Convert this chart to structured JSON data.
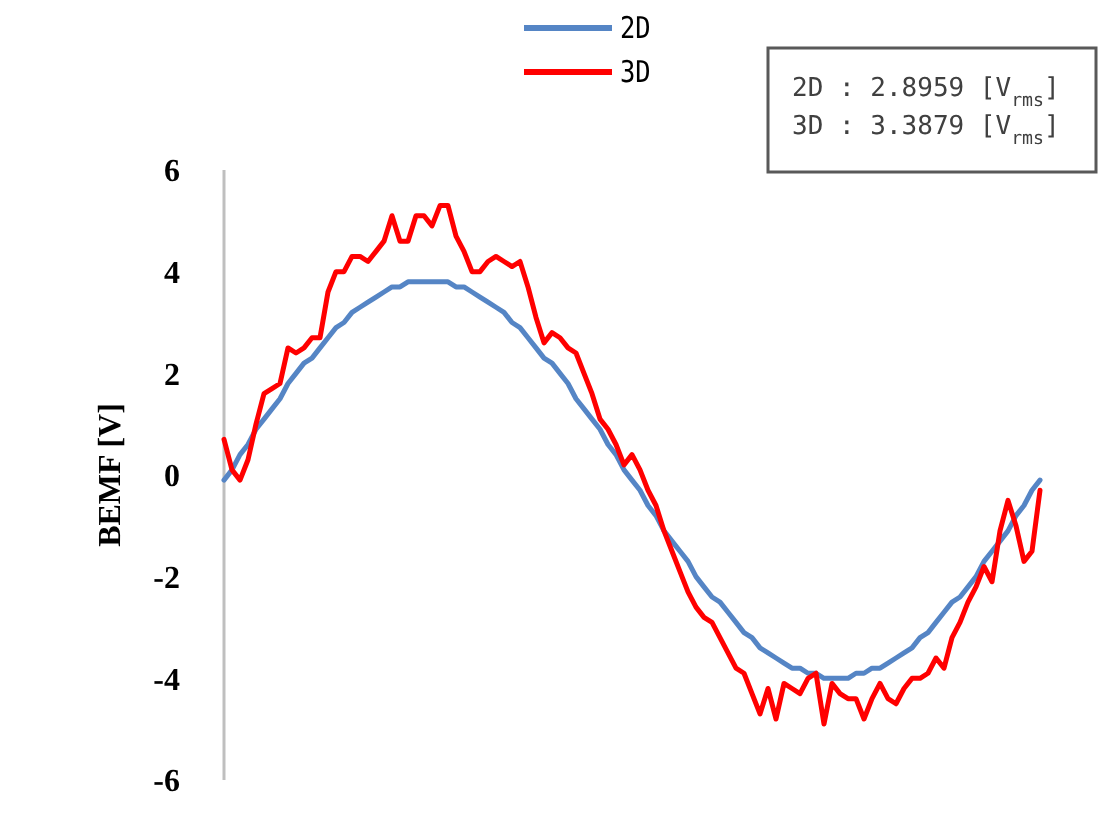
{
  "chart_data": {
    "type": "line",
    "ylabel": "BEMF  [V]",
    "categories": [
      null,
      null,
      null,
      null,
      null,
      null,
      null,
      null,
      null,
      null,
      null,
      null,
      null,
      null,
      null,
      null,
      null,
      null,
      null,
      null,
      null,
      null,
      null,
      null,
      null,
      null,
      null,
      null,
      null,
      null,
      null,
      null,
      null,
      null,
      null,
      null,
      null,
      null,
      null,
      null,
      null,
      null,
      null,
      null,
      null,
      null,
      null,
      null,
      null,
      null,
      null,
      null,
      null,
      null,
      null,
      null,
      null,
      null,
      null,
      null,
      null,
      null,
      null,
      null,
      null,
      null,
      null,
      null,
      null,
      null,
      null,
      null,
      null,
      null,
      null,
      null,
      null,
      null,
      null,
      null,
      null,
      null,
      null,
      null,
      null,
      null,
      null,
      null,
      null,
      null,
      null,
      null,
      null,
      null,
      null,
      null,
      null,
      null,
      null,
      null,
      null,
      null,
      null
    ],
    "series": [
      {
        "name": "2D",
        "color": "#5585c5",
        "values": [
          -0.1,
          0.1,
          0.4,
          0.6,
          0.9,
          1.1,
          1.3,
          1.5,
          1.8,
          2.0,
          2.2,
          2.3,
          2.5,
          2.7,
          2.9,
          3.0,
          3.2,
          3.3,
          3.4,
          3.5,
          3.6,
          3.7,
          3.7,
          3.8,
          3.8,
          3.8,
          3.8,
          3.8,
          3.8,
          3.7,
          3.7,
          3.6,
          3.5,
          3.4,
          3.3,
          3.2,
          3.0,
          2.9,
          2.7,
          2.5,
          2.3,
          2.2,
          2.0,
          1.8,
          1.5,
          1.3,
          1.1,
          0.9,
          0.6,
          0.4,
          0.1,
          -0.1,
          -0.3,
          -0.6,
          -0.8,
          -1.1,
          -1.3,
          -1.5,
          -1.7,
          -2.0,
          -2.2,
          -2.4,
          -2.5,
          -2.7,
          -2.9,
          -3.1,
          -3.2,
          -3.4,
          -3.5,
          -3.6,
          -3.7,
          -3.8,
          -3.8,
          -3.9,
          -3.9,
          -4.0,
          -4.0,
          -4.0,
          -4.0,
          -3.9,
          -3.9,
          -3.8,
          -3.8,
          -3.7,
          -3.6,
          -3.5,
          -3.4,
          -3.2,
          -3.1,
          -2.9,
          -2.7,
          -2.5,
          -2.4,
          -2.2,
          -2.0,
          -1.7,
          -1.5,
          -1.3,
          -1.1,
          -0.8,
          -0.6,
          -0.3,
          -0.1
        ]
      },
      {
        "name": "3D",
        "color": "#ff0000",
        "values": [
          0.7,
          0.1,
          -0.1,
          0.3,
          1.0,
          1.6,
          1.7,
          1.8,
          2.5,
          2.4,
          2.5,
          2.7,
          2.7,
          3.6,
          4.0,
          4.0,
          4.3,
          4.3,
          4.2,
          4.4,
          4.6,
          5.1,
          4.6,
          4.6,
          5.1,
          5.1,
          4.9,
          5.3,
          5.3,
          4.7,
          4.4,
          4.0,
          4.0,
          4.2,
          4.3,
          4.2,
          4.1,
          4.2,
          3.7,
          3.1,
          2.6,
          2.8,
          2.7,
          2.5,
          2.4,
          2.0,
          1.6,
          1.1,
          0.9,
          0.6,
          0.2,
          0.4,
          0.1,
          -0.3,
          -0.6,
          -1.1,
          -1.5,
          -1.9,
          -2.3,
          -2.6,
          -2.8,
          -2.9,
          -3.2,
          -3.5,
          -3.8,
          -3.9,
          -4.3,
          -4.7,
          -4.2,
          -4.8,
          -4.1,
          -4.2,
          -4.3,
          -4.0,
          -3.9,
          -4.9,
          -4.1,
          -4.3,
          -4.4,
          -4.4,
          -4.8,
          -4.4,
          -4.1,
          -4.4,
          -4.5,
          -4.2,
          -4.0,
          -4.0,
          -3.9,
          -3.6,
          -3.8,
          -3.2,
          -2.9,
          -2.5,
          -2.2,
          -1.8,
          -2.1,
          -1.1,
          -0.5,
          -1.0,
          -1.7,
          -1.5,
          -0.3
        ]
      }
    ],
    "ylim": [
      -6,
      6
    ],
    "yticks": [
      -6,
      -4,
      -2,
      0,
      2,
      4,
      6
    ],
    "tick_labels": "y",
    "legend": "top",
    "grid": false,
    "marker": "none",
    "line_style": "solid",
    "annotations": [
      "2D : 2.8959 [V$_{rms}$]",
      "3D : 3.3879 [V$_{rms}$]"
    ]
  }
}
